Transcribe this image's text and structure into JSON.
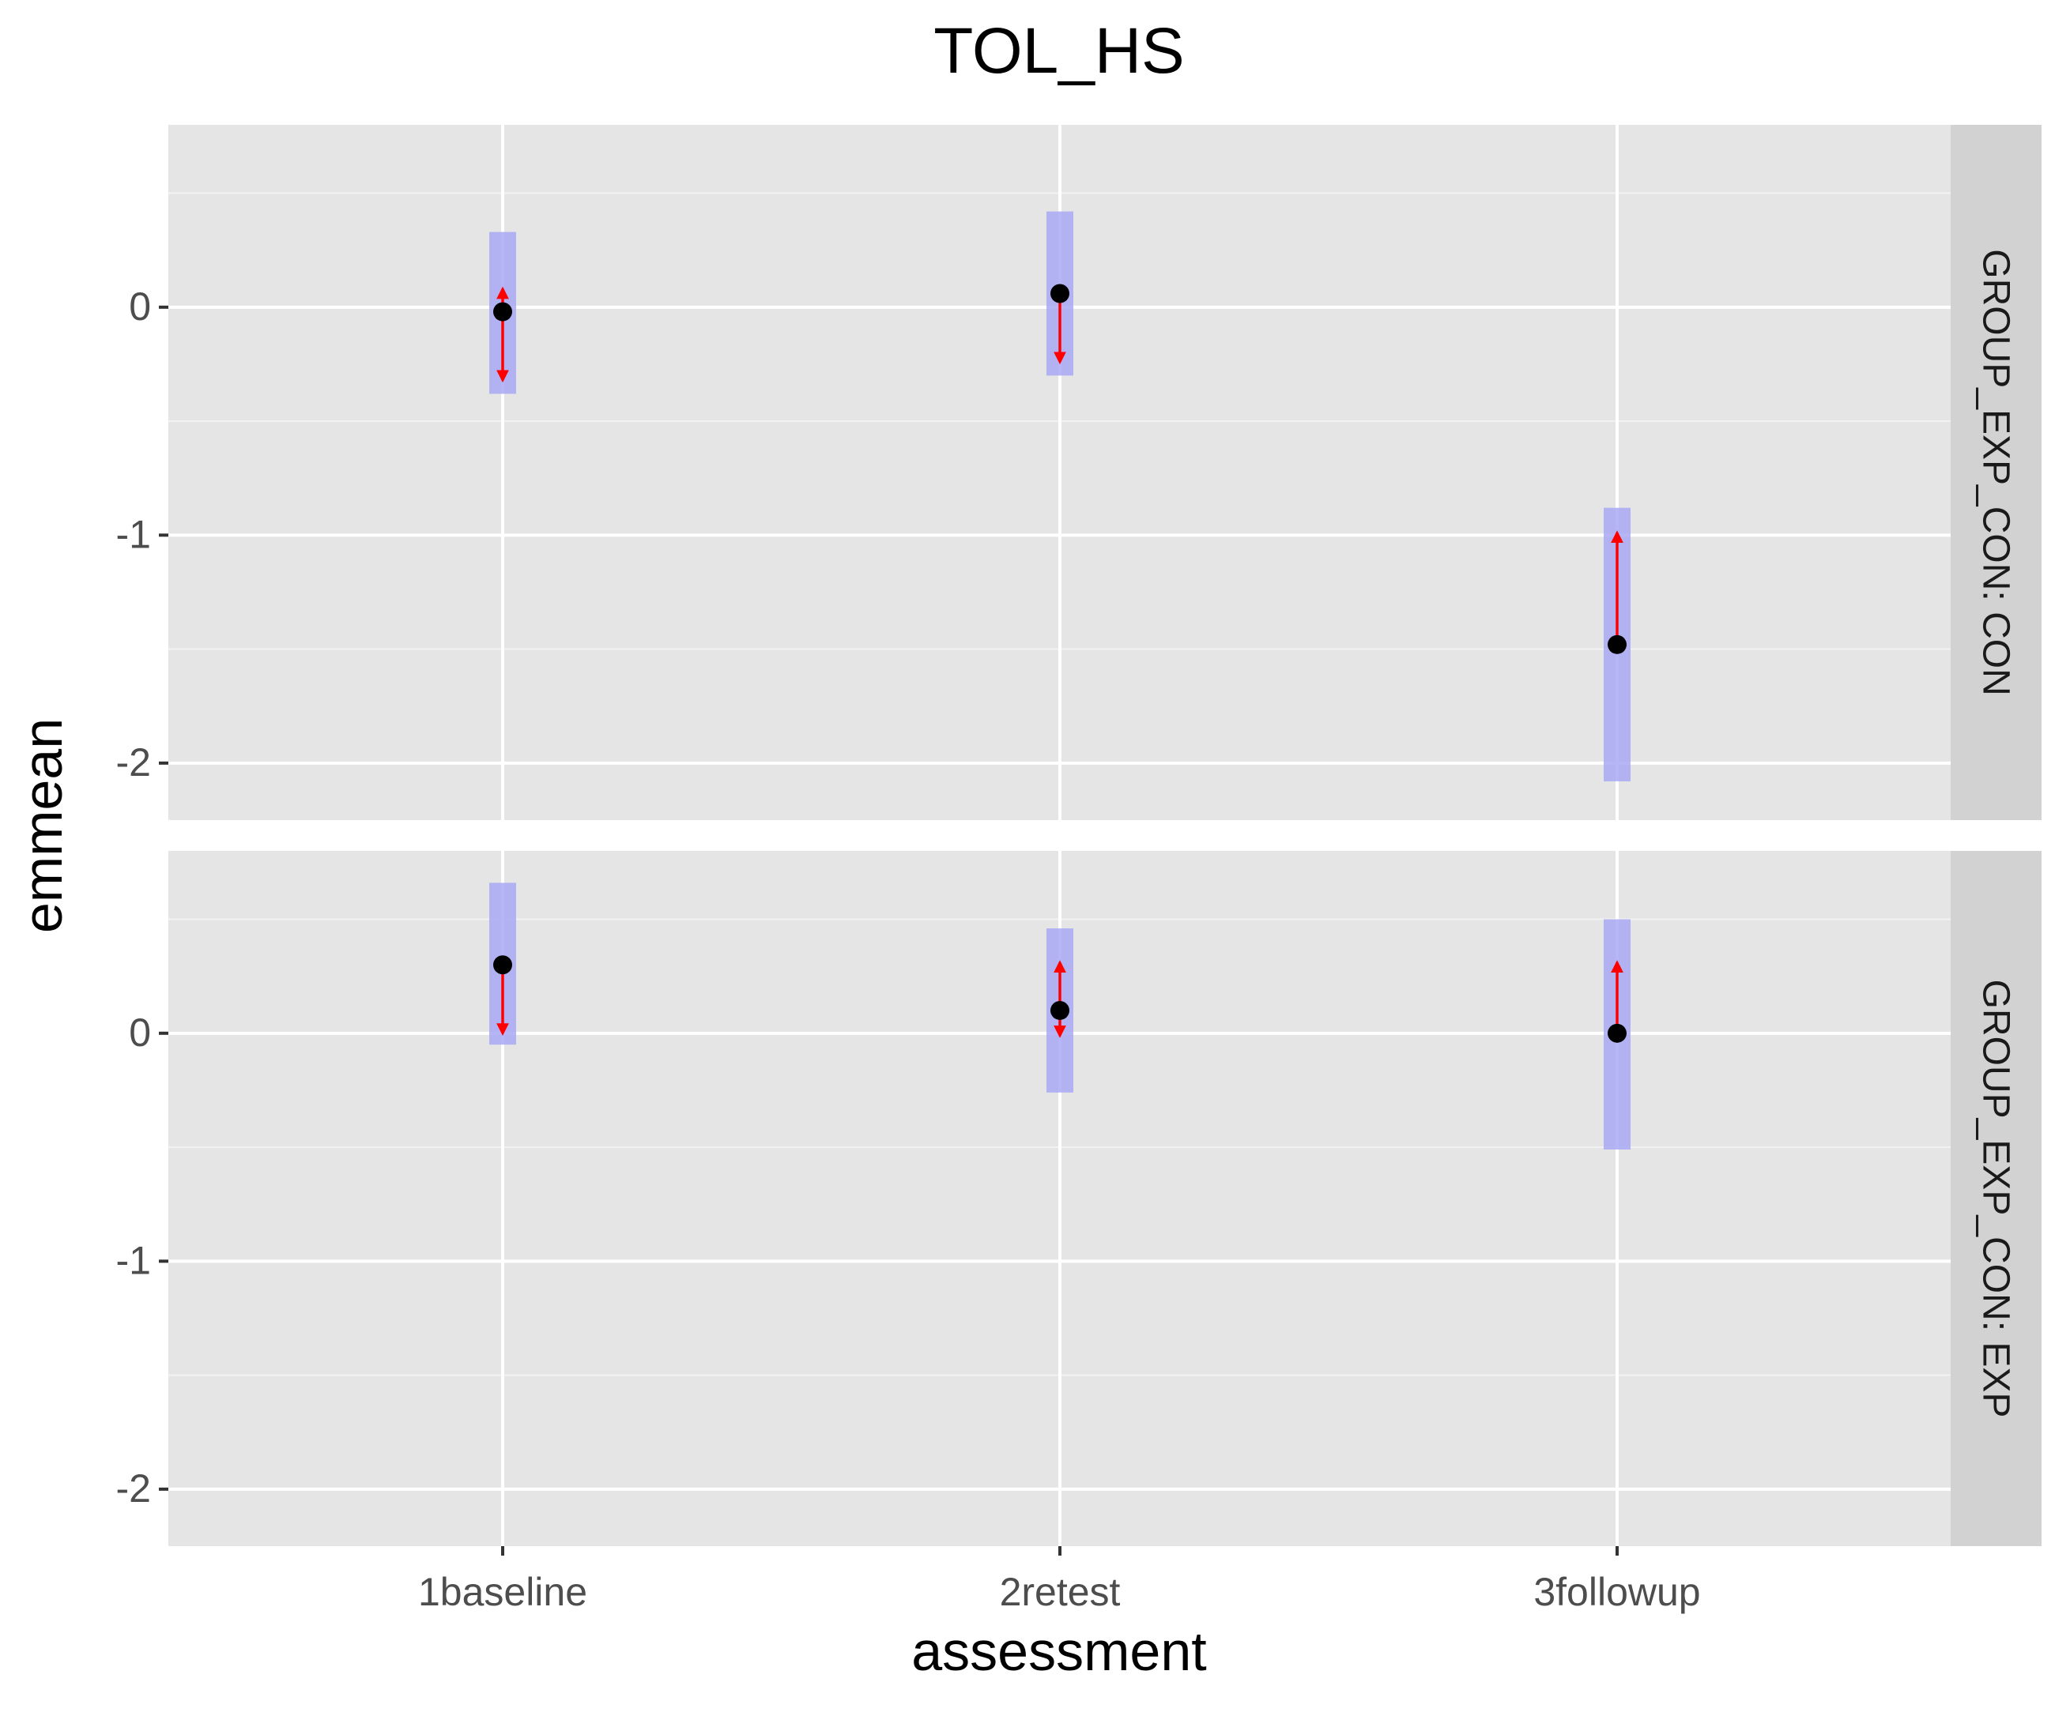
{
  "chart_data": {
    "type": "scatter",
    "title": "TOL_HS",
    "xlabel": "assessment",
    "ylabel": "emmean",
    "categories": [
      "1baseline",
      "2retest",
      "3followup"
    ],
    "ylim": [
      -2.25,
      0.8
    ],
    "y_ticks": [
      0,
      -1,
      -2
    ],
    "grid": true,
    "facets": [
      {
        "strip_label": "GROUP_EXP_CON: CON",
        "emmean": [
          -0.02,
          0.06,
          -1.48
        ],
        "ci_lower": [
          -0.38,
          -0.3,
          -2.08
        ],
        "ci_upper": [
          0.33,
          0.42,
          -0.88
        ],
        "arrows": [
          {
            "category": "1baseline",
            "from": -0.02,
            "to": 0.08
          },
          {
            "category": "1baseline",
            "from": -0.02,
            "to": -0.32
          },
          {
            "category": "2retest",
            "from": 0.06,
            "to": -0.24
          },
          {
            "category": "3followup",
            "from": -1.48,
            "to": -0.99
          }
        ]
      },
      {
        "strip_label": "GROUP_EXP_CON: EXP",
        "emmean": [
          0.3,
          0.1,
          0.0
        ],
        "ci_lower": [
          -0.05,
          -0.26,
          -0.51
        ],
        "ci_upper": [
          0.66,
          0.46,
          0.5
        ],
        "arrows": [
          {
            "category": "1baseline",
            "from": 0.3,
            "to": 0.0
          },
          {
            "category": "2retest",
            "from": 0.1,
            "to": 0.31
          },
          {
            "category": "2retest",
            "from": 0.1,
            "to": -0.01
          },
          {
            "category": "3followup",
            "from": 0.0,
            "to": 0.31
          }
        ]
      }
    ],
    "colors": {
      "panel_bg": "#E5E5E5",
      "strip_bg": "#D2D2D2",
      "grid_major": "#FFFFFF",
      "grid_minor": "#F2F2F2",
      "ci_fill": "#A9A9F5",
      "point": "#000000",
      "arrow": "#FF0000",
      "text": "#000000",
      "tick_text": "#4D4D4D"
    }
  }
}
